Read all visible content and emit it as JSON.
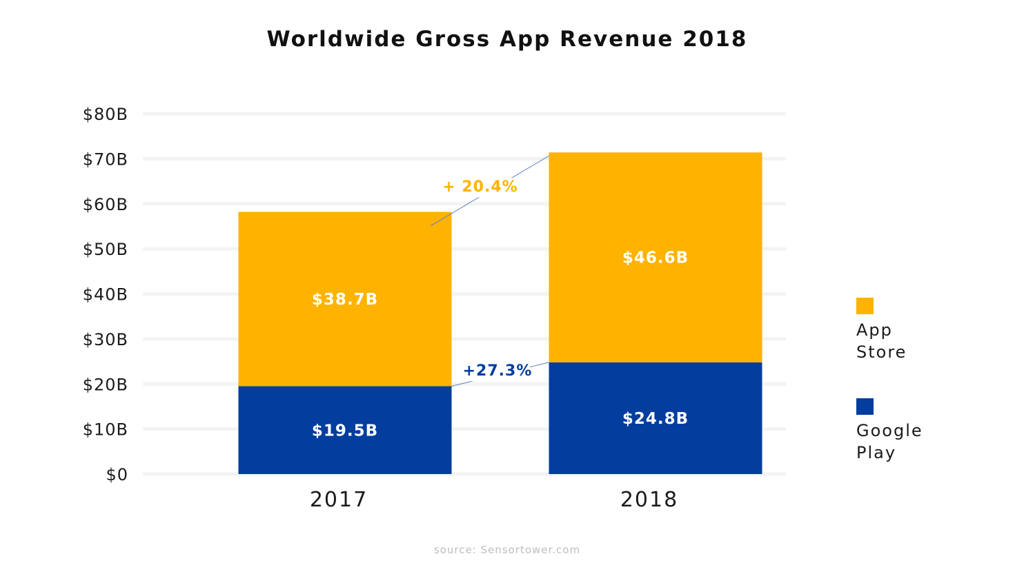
{
  "chart_data": {
    "type": "bar",
    "stacked": true,
    "title": "Worldwide Gross App Revenue 2018",
    "categories": [
      "2017",
      "2018"
    ],
    "series": [
      {
        "name": "Google Play",
        "values": [
          19.5,
          24.8
        ],
        "labels": [
          "$19.5B",
          "$24.8B"
        ],
        "color": "#033d9e"
      },
      {
        "name": "App Store",
        "values": [
          38.7,
          46.6
        ],
        "labels": [
          "$38.7B",
          "$46.6B"
        ],
        "color": "#fdb300"
      }
    ],
    "y_ticks": [
      "$0",
      "$10B",
      "$20B",
      "$30B",
      "$40B",
      "$50B",
      "$60B",
      "$70B",
      "$80B"
    ],
    "ylim": [
      0,
      80
    ],
    "grid": true,
    "legend_position": "right",
    "annotations": [
      {
        "text": "+ 20.4%",
        "series": "App Store",
        "color": "#fdb300"
      },
      {
        "text": "+27.3%",
        "series": "Google Play",
        "color": "#033d9e"
      }
    ],
    "source": "source: Sensortower.com"
  }
}
